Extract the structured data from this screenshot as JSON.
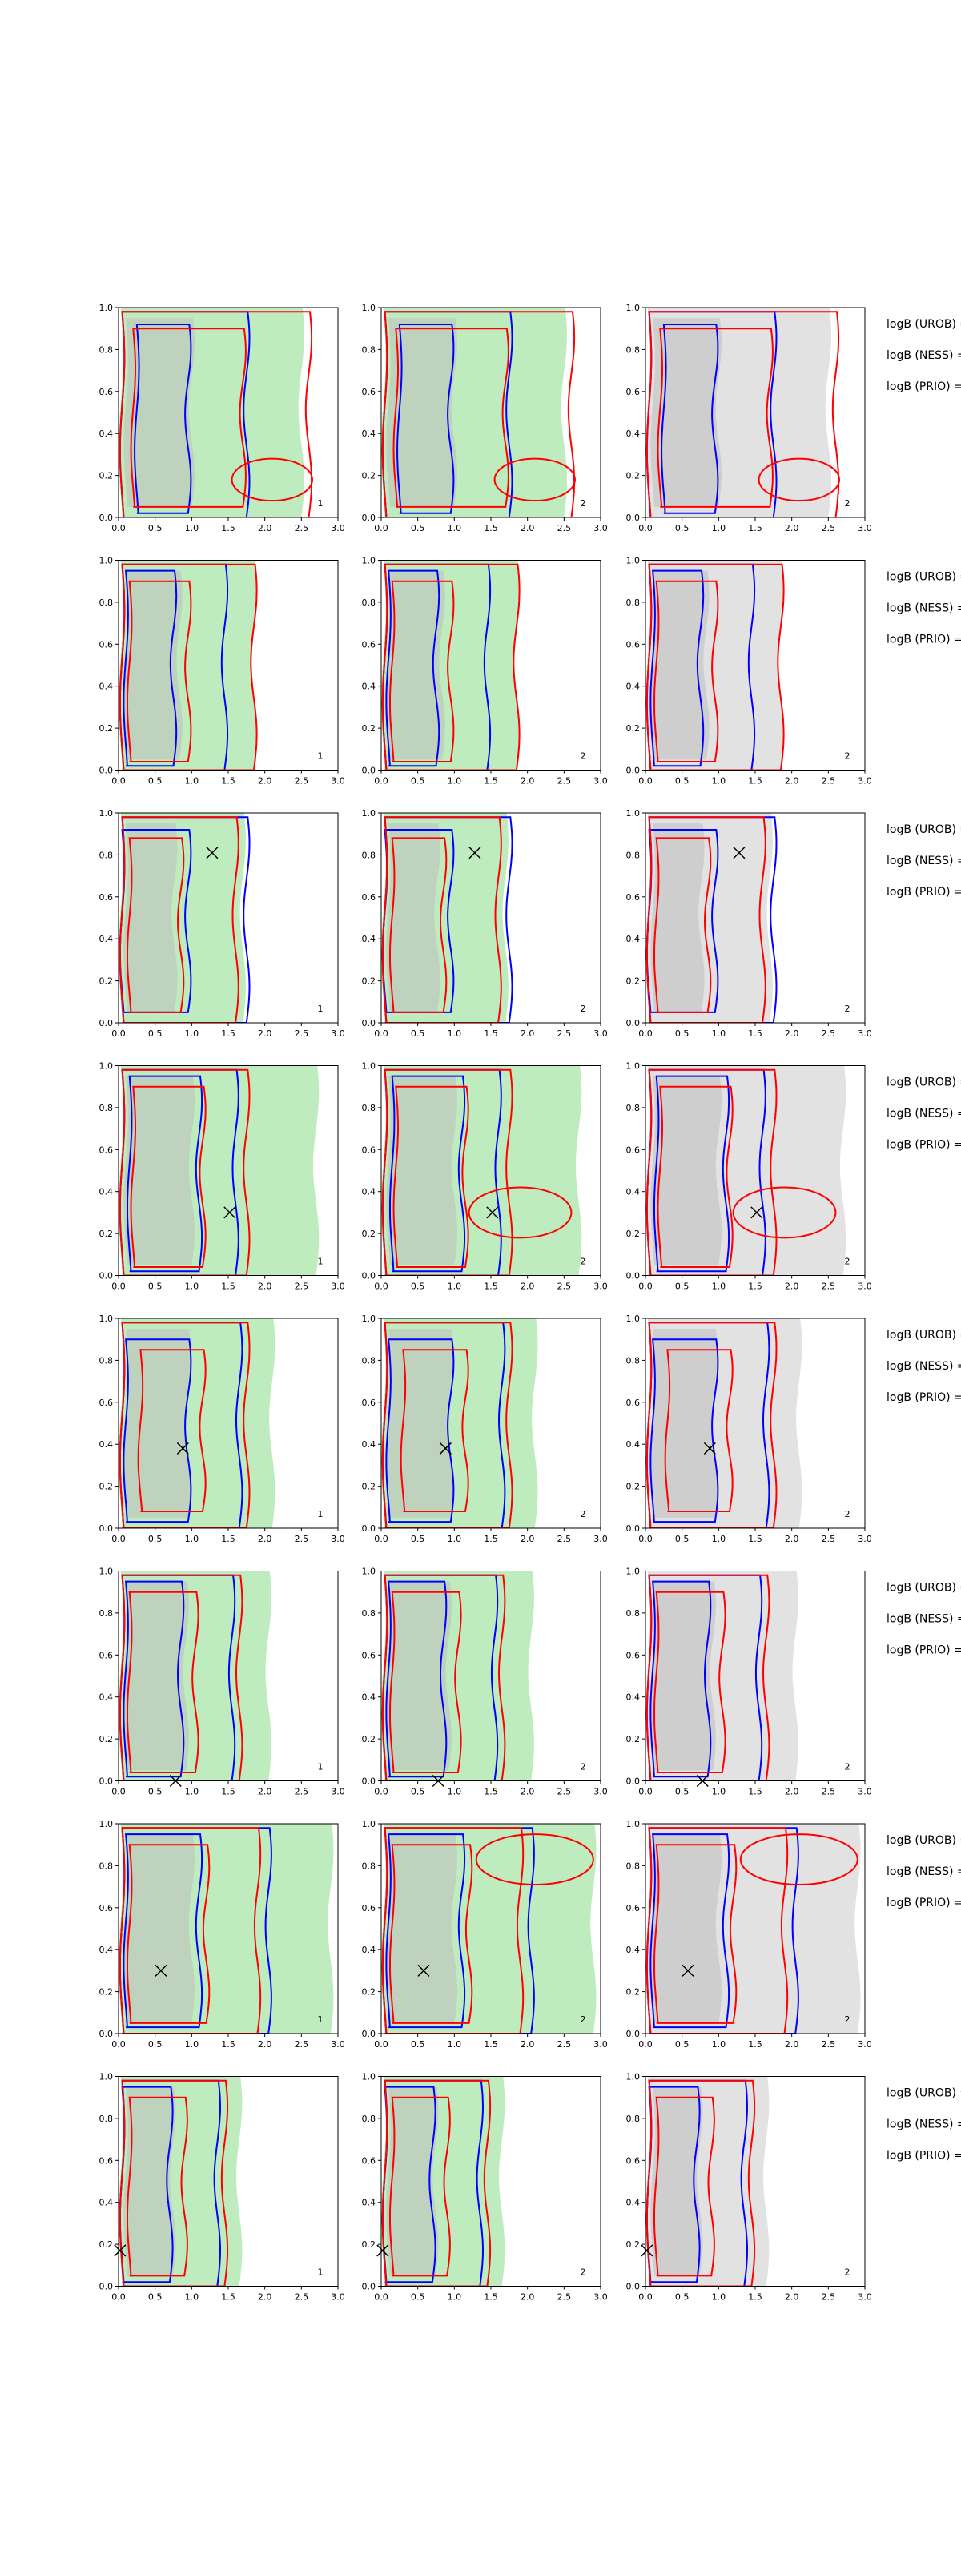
{
  "figure": {
    "row_labels": [
      "logB (UROB) =",
      "logB (NESS) =",
      "logB (PRIO) ="
    ]
  },
  "chart_data": {
    "type": "contour-grid",
    "rows": 8,
    "cols": 3,
    "xlim": [
      0,
      3
    ],
    "ylim": [
      0,
      1
    ],
    "x_ticks": [
      "0.0",
      "0.5",
      "1.0",
      "1.5",
      "2.0",
      "2.5",
      "3.0"
    ],
    "y_ticks": [
      "0.0",
      "0.2",
      "0.4",
      "0.6",
      "0.8",
      "1.0"
    ],
    "grid": false,
    "panel_numbers": [
      "1",
      "2",
      "2"
    ],
    "colors": {
      "red": "#ff0000",
      "blue": "#0000ff",
      "green_fill": "#a8e6a8",
      "gray_fill": "#d8d8d8"
    },
    "x_markers": [
      null,
      null,
      {
        "x": 1.28,
        "y": 0.81
      },
      {
        "x": 1.52,
        "y": 0.3
      },
      {
        "x": 0.88,
        "y": 0.38
      },
      {
        "x": 0.78,
        "y": 0.0
      },
      {
        "x": 0.58,
        "y": 0.3
      },
      {
        "x": 0.02,
        "y": 0.17
      }
    ],
    "rows_data": [
      {
        "blue": [
          [
            0.25,
            0.02,
            0.95,
            0.92
          ],
          [
            0.05,
            0.0,
            1.75,
            0.98
          ]
        ],
        "red": [
          [
            0.2,
            0.05,
            1.7,
            0.9
          ],
          [
            0.05,
            0.0,
            2.6,
            0.98
          ]
        ],
        "blob_red": {
          "x": 2.1,
          "y": 0.18,
          "rx": 0.55,
          "ry": 0.1
        },
        "shade_width": 2.5
      },
      {
        "blue": [
          [
            0.1,
            0.02,
            0.75,
            0.95
          ],
          [
            0.05,
            0.0,
            1.45,
            0.98
          ]
        ],
        "red": [
          [
            0.15,
            0.04,
            0.95,
            0.9
          ],
          [
            0.05,
            0.0,
            1.85,
            0.98
          ]
        ],
        "blob_red": null,
        "shade_width": 1.85
      },
      {
        "blue": [
          [
            0.05,
            0.05,
            0.95,
            0.92
          ],
          [
            0.05,
            0.0,
            1.75,
            0.98
          ]
        ],
        "red": [
          [
            0.15,
            0.05,
            0.85,
            0.88
          ],
          [
            0.05,
            0.0,
            1.6,
            0.98
          ]
        ],
        "blob_red": null,
        "shade_width": 1.7
      },
      {
        "blue": [
          [
            0.15,
            0.02,
            1.1,
            0.95
          ],
          [
            0.05,
            0.0,
            1.6,
            0.98
          ]
        ],
        "red": [
          [
            0.2,
            0.04,
            1.15,
            0.9
          ],
          [
            0.05,
            0.0,
            1.75,
            0.98
          ]
        ],
        "blob_red": {
          "x": 1.9,
          "y": 0.3,
          "rx": 0.7,
          "ry": 0.12
        },
        "shade_width": 2.7
      },
      {
        "blue": [
          [
            0.1,
            0.03,
            0.95,
            0.9
          ],
          [
            0.05,
            0.0,
            1.65,
            0.98
          ]
        ],
        "red": [
          [
            0.3,
            0.08,
            1.15,
            0.85
          ],
          [
            0.05,
            0.0,
            1.75,
            0.98
          ]
        ],
        "blob_red": null,
        "shade_width": 2.1
      },
      {
        "blue": [
          [
            0.1,
            0.02,
            0.85,
            0.95
          ],
          [
            0.05,
            0.0,
            1.55,
            0.98
          ]
        ],
        "red": [
          [
            0.15,
            0.04,
            1.05,
            0.9
          ],
          [
            0.05,
            0.0,
            1.65,
            0.98
          ]
        ],
        "blob_red": null,
        "shade_width": 2.05
      },
      {
        "blue": [
          [
            0.1,
            0.03,
            1.1,
            0.95
          ],
          [
            0.05,
            0.0,
            2.05,
            0.98
          ]
        ],
        "red": [
          [
            0.15,
            0.05,
            1.2,
            0.9
          ],
          [
            0.05,
            0.0,
            1.9,
            0.98
          ]
        ],
        "blob_red": {
          "x": 2.1,
          "y": 0.83,
          "rx": 0.8,
          "ry": 0.12
        },
        "shade_width": 2.9
      },
      {
        "blue": [
          [
            0.05,
            0.02,
            0.7,
            0.95
          ],
          [
            0.05,
            0.0,
            1.35,
            0.98
          ]
        ],
        "red": [
          [
            0.15,
            0.05,
            0.9,
            0.9
          ],
          [
            0.05,
            0.0,
            1.45,
            0.98
          ]
        ],
        "blob_red": null,
        "shade_width": 1.65
      }
    ]
  }
}
